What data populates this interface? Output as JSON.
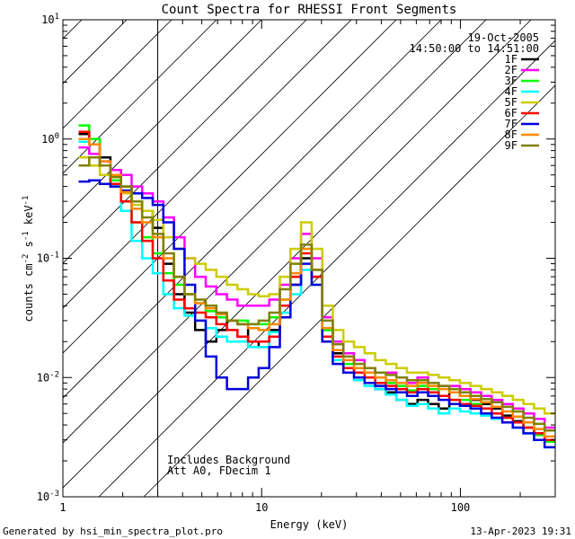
{
  "chart_data": {
    "type": "line",
    "title": "Count Spectra for RHESSI Front Segments",
    "xlabel": "Energy (keV)",
    "ylabel_parts": [
      "counts cm",
      "-2",
      " s",
      "-1",
      " keV",
      "-1"
    ],
    "xscale": "log",
    "yscale": "log",
    "xlim": [
      1,
      300
    ],
    "ylim": [
      0.001,
      10
    ],
    "x_ticks": [
      {
        "v": 1,
        "label": "1"
      },
      {
        "v": 10,
        "label": "10"
      },
      {
        "v": 100,
        "label": "100"
      }
    ],
    "y_ticks": [
      {
        "v": 0.001,
        "base": "10",
        "exp": "-3"
      },
      {
        "v": 0.01,
        "base": "10",
        "exp": "-2"
      },
      {
        "v": 0.1,
        "base": "10",
        "exp": "-1"
      },
      {
        "v": 1,
        "base": "10",
        "exp": "0"
      },
      {
        "v": 10,
        "base": "10",
        "exp": "1"
      }
    ],
    "hatched_region_x": [
      1,
      3
    ],
    "date": "19-Oct-2005",
    "time_range": "14:50:00 to 14:51:00",
    "annotations": [
      "Includes Background",
      "Att A0, FDecim 1"
    ],
    "series": [
      {
        "name": "1F",
        "color": "#000000",
        "values": [
          1.1,
          1.0,
          0.7,
          0.55,
          0.4,
          0.3,
          0.25,
          0.18,
          0.09,
          0.05,
          0.035,
          0.025,
          0.02,
          0.025,
          0.03,
          0.028,
          0.02,
          0.018,
          0.025,
          0.04,
          0.06,
          0.1,
          0.07,
          0.025,
          0.016,
          0.012,
          0.011,
          0.009,
          0.008,
          0.0075,
          0.0065,
          0.006,
          0.0065,
          0.006,
          0.0055,
          0.0075,
          0.007,
          0.0065,
          0.006,
          0.0055,
          0.0048,
          0.0043,
          0.0038,
          0.0034,
          0.003
        ]
      },
      {
        "name": "2F",
        "color": "#ff00ff",
        "values": [
          0.85,
          0.75,
          0.65,
          0.55,
          0.5,
          0.4,
          0.35,
          0.3,
          0.22,
          0.15,
          0.1,
          0.07,
          0.058,
          0.05,
          0.045,
          0.04,
          0.04,
          0.04,
          0.045,
          0.06,
          0.1,
          0.16,
          0.1,
          0.032,
          0.02,
          0.016,
          0.014,
          0.012,
          0.011,
          0.011,
          0.01,
          0.009,
          0.01,
          0.009,
          0.0085,
          0.0085,
          0.008,
          0.0075,
          0.007,
          0.0065,
          0.006,
          0.0055,
          0.005,
          0.0045,
          0.0038
        ]
      },
      {
        "name": "3F",
        "color": "#00ff00",
        "values": [
          1.3,
          1.0,
          0.6,
          0.45,
          0.3,
          0.2,
          0.15,
          0.11,
          0.075,
          0.06,
          0.05,
          0.042,
          0.036,
          0.032,
          0.03,
          0.03,
          0.028,
          0.028,
          0.032,
          0.045,
          0.07,
          0.12,
          0.08,
          0.025,
          0.017,
          0.013,
          0.012,
          0.011,
          0.01,
          0.009,
          0.0085,
          0.0078,
          0.0085,
          0.008,
          0.007,
          0.0065,
          0.0065,
          0.006,
          0.0055,
          0.005,
          0.0046,
          0.0042,
          0.0038,
          0.0033,
          0.0029
        ]
      },
      {
        "name": "4F",
        "color": "#00ffff",
        "values": [
          0.95,
          0.9,
          0.6,
          0.4,
          0.25,
          0.14,
          0.1,
          0.075,
          0.05,
          0.038,
          0.033,
          0.03,
          0.026,
          0.022,
          0.02,
          0.02,
          0.018,
          0.018,
          0.024,
          0.035,
          0.05,
          0.08,
          0.06,
          0.02,
          0.014,
          0.011,
          0.0095,
          0.0085,
          0.008,
          0.0072,
          0.0065,
          0.0058,
          0.006,
          0.0055,
          0.005,
          0.0055,
          0.0052,
          0.005,
          0.0048,
          0.0045,
          0.0042,
          0.0038,
          0.0034,
          0.003,
          0.0026
        ]
      },
      {
        "name": "5F",
        "color": "#cccc00",
        "values": [
          0.7,
          0.6,
          0.5,
          0.42,
          0.35,
          0.28,
          0.25,
          0.21,
          0.15,
          0.12,
          0.1,
          0.09,
          0.08,
          0.07,
          0.06,
          0.055,
          0.05,
          0.048,
          0.05,
          0.07,
          0.12,
          0.2,
          0.12,
          0.04,
          0.025,
          0.02,
          0.018,
          0.016,
          0.014,
          0.013,
          0.012,
          0.011,
          0.011,
          0.0105,
          0.01,
          0.0095,
          0.009,
          0.0085,
          0.008,
          0.0075,
          0.007,
          0.0065,
          0.006,
          0.0055,
          0.005
        ]
      },
      {
        "name": "6F",
        "color": "#ff0000",
        "values": [
          1.15,
          0.9,
          0.6,
          0.42,
          0.3,
          0.2,
          0.14,
          0.1,
          0.065,
          0.045,
          0.038,
          0.035,
          0.032,
          0.028,
          0.025,
          0.022,
          0.02,
          0.02,
          0.022,
          0.04,
          0.07,
          0.11,
          0.07,
          0.022,
          0.015,
          0.012,
          0.011,
          0.01,
          0.009,
          0.0085,
          0.008,
          0.0075,
          0.008,
          0.0075,
          0.007,
          0.0065,
          0.006,
          0.0058,
          0.0055,
          0.005,
          0.0046,
          0.0042,
          0.0038,
          0.0034,
          0.003
        ]
      },
      {
        "name": "7F",
        "color": "#0000dd",
        "values": [
          0.44,
          0.45,
          0.42,
          0.4,
          0.37,
          0.35,
          0.32,
          0.28,
          0.2,
          0.12,
          0.06,
          0.03,
          0.015,
          0.01,
          0.008,
          0.008,
          0.01,
          0.012,
          0.018,
          0.032,
          0.06,
          0.09,
          0.06,
          0.02,
          0.013,
          0.011,
          0.01,
          0.009,
          0.0085,
          0.008,
          0.0075,
          0.007,
          0.0075,
          0.007,
          0.0065,
          0.006,
          0.0058,
          0.0055,
          0.005,
          0.0046,
          0.0042,
          0.0038,
          0.0034,
          0.003,
          0.0026
        ]
      },
      {
        "name": "8F",
        "color": "#ff8800",
        "values": [
          1.0,
          0.9,
          0.65,
          0.5,
          0.36,
          0.26,
          0.2,
          0.15,
          0.1,
          0.07,
          0.05,
          0.042,
          0.038,
          0.034,
          0.03,
          0.028,
          0.026,
          0.025,
          0.028,
          0.045,
          0.075,
          0.12,
          0.08,
          0.026,
          0.017,
          0.014,
          0.012,
          0.011,
          0.01,
          0.0095,
          0.009,
          0.0085,
          0.009,
          0.0085,
          0.008,
          0.0075,
          0.007,
          0.0066,
          0.0062,
          0.0057,
          0.0052,
          0.0047,
          0.0042,
          0.0037,
          0.0032
        ]
      },
      {
        "name": "9F",
        "color": "#808000",
        "values": [
          0.6,
          0.7,
          0.6,
          0.48,
          0.4,
          0.3,
          0.22,
          0.16,
          0.11,
          0.07,
          0.05,
          0.045,
          0.04,
          0.035,
          0.03,
          0.028,
          0.028,
          0.03,
          0.035,
          0.055,
          0.09,
          0.13,
          0.08,
          0.03,
          0.019,
          0.015,
          0.013,
          0.012,
          0.011,
          0.0105,
          0.01,
          0.0095,
          0.0095,
          0.009,
          0.0085,
          0.008,
          0.0075,
          0.007,
          0.0066,
          0.0062,
          0.0057,
          0.0052,
          0.0046,
          0.0041,
          0.0036
        ]
      }
    ]
  },
  "footer": {
    "generated_by": "Generated by hsi_min_spectra_plot.pro",
    "timestamp": "13-Apr-2023 19:31"
  }
}
